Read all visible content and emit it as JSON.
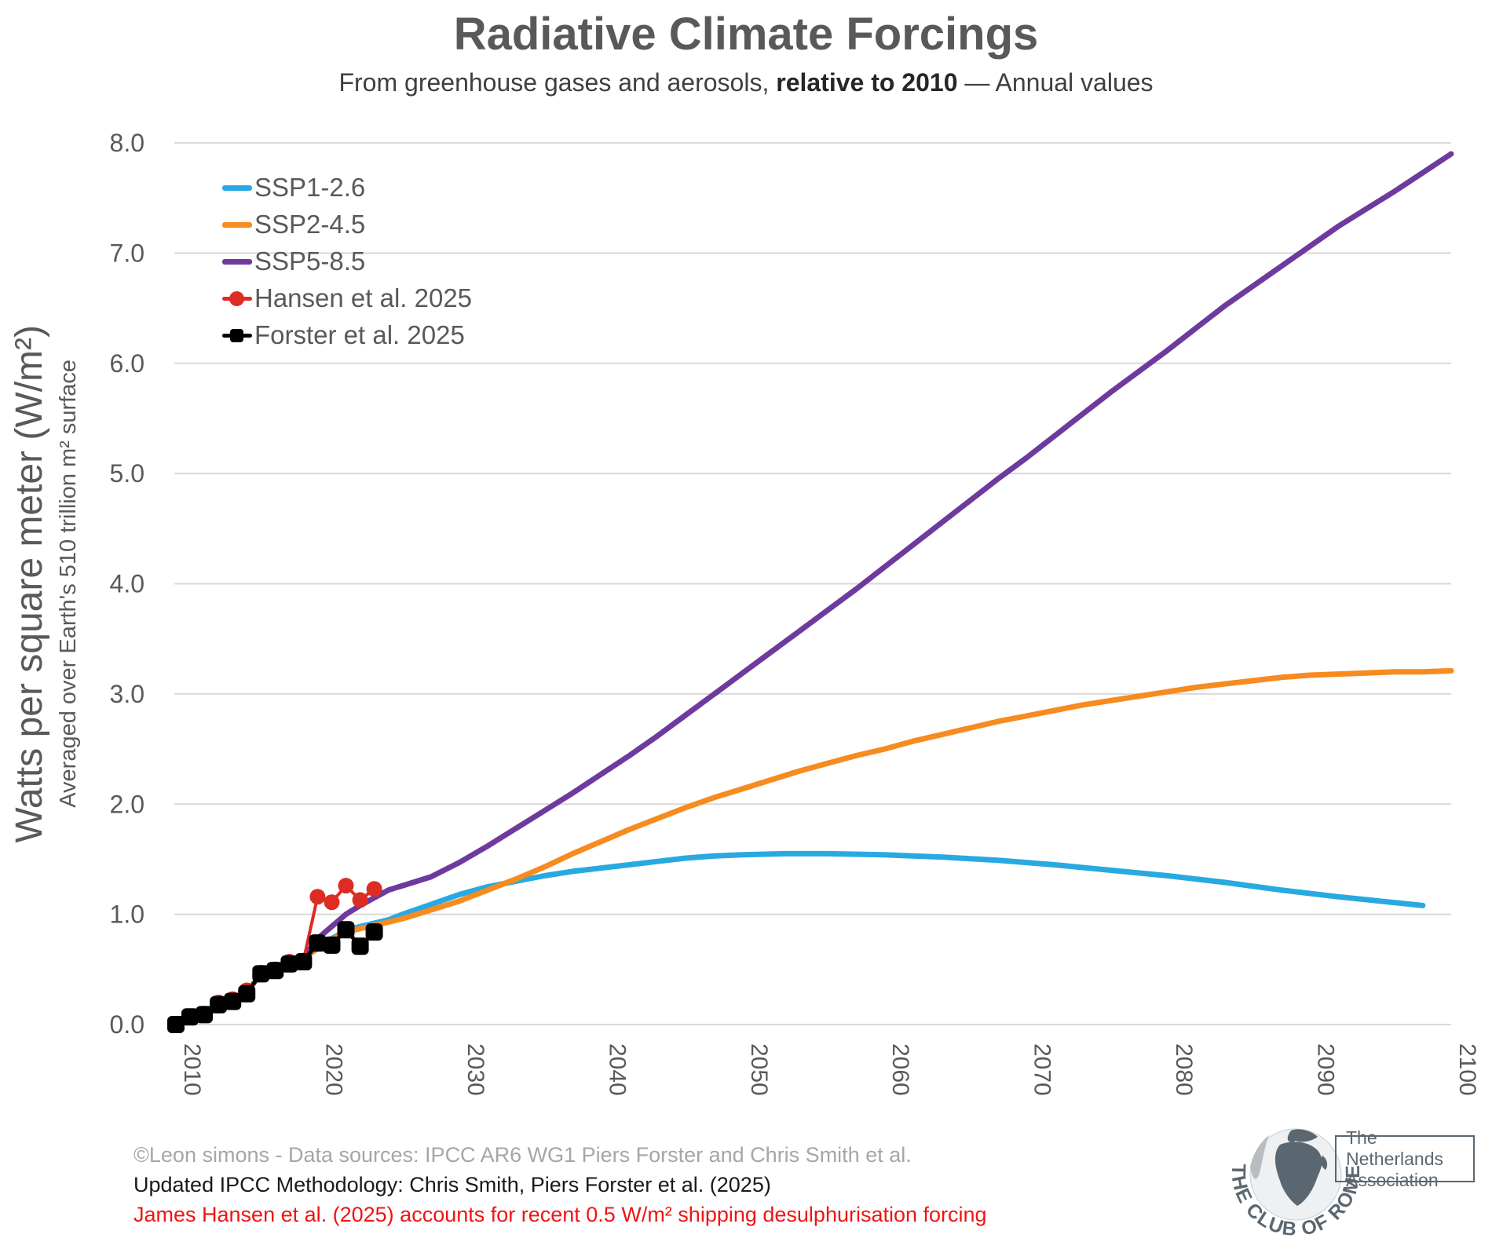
{
  "title": "Radiative Climate Forcings",
  "subtitle": {
    "prefix": "From greenhouse gases and aerosols, ",
    "bold": "relative to 2010",
    "suffix": " — Annual values"
  },
  "y_axis": {
    "title": "Watts per square meter (W/m²)",
    "subtitle": "Averaged over Earth's 510 trillion m² surface"
  },
  "footer": {
    "credit": "©Leon simons - Data sources: IPCC AR6 WG1 Piers Forster and Chris Smith et al.",
    "credit_color": "#a6a6a6",
    "methodology": "Updated IPCC Methodology: Chris Smith, Piers Forster et al. (2025)",
    "methodology_color": "#1a1a1a",
    "hansen_note": "James Hansen et al. (2025) accounts for recent 0.5 W/m² shipping desulphurisation forcing",
    "hansen_note_color": "#f01414"
  },
  "logo": {
    "arc_text": "THE CLUB OF ROME",
    "box_line1": "The Netherlands",
    "box_line2": "Association",
    "color": "#5b6770"
  },
  "chart_data": {
    "type": "line",
    "title": "Radiative Climate Forcings",
    "xlabel": "",
    "ylabel": "Watts per square meter (W/m²)",
    "xlim": [
      2010,
      2100
    ],
    "ylim": [
      0,
      8
    ],
    "grid": "horizontal",
    "grid_color": "#d9d9d9",
    "axis_color": "#595959",
    "legend_position": "inside top-left",
    "xticks": [
      {
        "v": 2010,
        "label": "2010"
      },
      {
        "v": 2020,
        "label": "2020"
      },
      {
        "v": 2030,
        "label": "2030"
      },
      {
        "v": 2040,
        "label": "2040"
      },
      {
        "v": 2050,
        "label": "2050"
      },
      {
        "v": 2060,
        "label": "2060"
      },
      {
        "v": 2070,
        "label": "2070"
      },
      {
        "v": 2080,
        "label": "2080"
      },
      {
        "v": 2090,
        "label": "2090"
      },
      {
        "v": 2100,
        "label": "2100"
      }
    ],
    "yticks": [
      {
        "v": 0,
        "label": "0.0"
      },
      {
        "v": 1,
        "label": "1.0"
      },
      {
        "v": 2,
        "label": "2.0"
      },
      {
        "v": 3,
        "label": "3.0"
      },
      {
        "v": 4,
        "label": "4.0"
      },
      {
        "v": 5,
        "label": "5.0"
      },
      {
        "v": 6,
        "label": "6.0"
      },
      {
        "v": 7,
        "label": "7.0"
      },
      {
        "v": 8,
        "label": "8.0"
      }
    ],
    "series": [
      {
        "id": "ssp1-26",
        "name": "SSP1-2.6",
        "color": "#29a9e1",
        "width": 7,
        "marker": "none",
        "points": [
          [
            2019,
            0.6
          ],
          [
            2020,
            0.7
          ],
          [
            2021,
            0.78
          ],
          [
            2022,
            0.85
          ],
          [
            2023,
            0.89
          ],
          [
            2024,
            0.92
          ],
          [
            2025,
            0.95
          ],
          [
            2026,
            1.0
          ],
          [
            2028,
            1.09
          ],
          [
            2030,
            1.18
          ],
          [
            2032,
            1.25
          ],
          [
            2034,
            1.3
          ],
          [
            2036,
            1.35
          ],
          [
            2038,
            1.39
          ],
          [
            2040,
            1.42
          ],
          [
            2042,
            1.45
          ],
          [
            2044,
            1.48
          ],
          [
            2046,
            1.51
          ],
          [
            2048,
            1.53
          ],
          [
            2050,
            1.54
          ],
          [
            2053,
            1.55
          ],
          [
            2056,
            1.55
          ],
          [
            2060,
            1.54
          ],
          [
            2064,
            1.52
          ],
          [
            2068,
            1.49
          ],
          [
            2072,
            1.45
          ],
          [
            2076,
            1.4
          ],
          [
            2080,
            1.35
          ],
          [
            2084,
            1.29
          ],
          [
            2088,
            1.22
          ],
          [
            2092,
            1.16
          ],
          [
            2095,
            1.12
          ],
          [
            2098,
            1.08
          ]
        ]
      },
      {
        "id": "ssp2-45",
        "name": "SSP2-4.5",
        "color": "#f68b1f",
        "width": 7,
        "marker": "none",
        "points": [
          [
            2019,
            0.6
          ],
          [
            2020,
            0.69
          ],
          [
            2021,
            0.77
          ],
          [
            2022,
            0.84
          ],
          [
            2023,
            0.87
          ],
          [
            2024,
            0.9
          ],
          [
            2025,
            0.93
          ],
          [
            2026,
            0.96
          ],
          [
            2028,
            1.04
          ],
          [
            2030,
            1.12
          ],
          [
            2032,
            1.22
          ],
          [
            2034,
            1.32
          ],
          [
            2036,
            1.43
          ],
          [
            2038,
            1.55
          ],
          [
            2040,
            1.66
          ],
          [
            2042,
            1.77
          ],
          [
            2044,
            1.87
          ],
          [
            2046,
            1.97
          ],
          [
            2048,
            2.06
          ],
          [
            2050,
            2.14
          ],
          [
            2052,
            2.22
          ],
          [
            2054,
            2.3
          ],
          [
            2056,
            2.37
          ],
          [
            2058,
            2.44
          ],
          [
            2060,
            2.5
          ],
          [
            2062,
            2.57
          ],
          [
            2064,
            2.63
          ],
          [
            2066,
            2.69
          ],
          [
            2068,
            2.75
          ],
          [
            2070,
            2.8
          ],
          [
            2072,
            2.85
          ],
          [
            2074,
            2.9
          ],
          [
            2076,
            2.94
          ],
          [
            2078,
            2.98
          ],
          [
            2080,
            3.02
          ],
          [
            2082,
            3.06
          ],
          [
            2084,
            3.09
          ],
          [
            2086,
            3.12
          ],
          [
            2088,
            3.15
          ],
          [
            2090,
            3.17
          ],
          [
            2092,
            3.18
          ],
          [
            2094,
            3.19
          ],
          [
            2096,
            3.2
          ],
          [
            2098,
            3.2
          ],
          [
            2100,
            3.21
          ]
        ]
      },
      {
        "id": "ssp5-85",
        "name": "SSP5-8.5",
        "color": "#6e3a9e",
        "width": 7,
        "marker": "none",
        "points": [
          [
            2019,
            0.6
          ],
          [
            2020,
            0.78
          ],
          [
            2021,
            0.89
          ],
          [
            2022,
            1.0
          ],
          [
            2023,
            1.08
          ],
          [
            2024,
            1.15
          ],
          [
            2025,
            1.22
          ],
          [
            2026,
            1.26
          ],
          [
            2028,
            1.34
          ],
          [
            2030,
            1.47
          ],
          [
            2032,
            1.62
          ],
          [
            2034,
            1.78
          ],
          [
            2036,
            1.94
          ],
          [
            2038,
            2.1
          ],
          [
            2040,
            2.27
          ],
          [
            2042,
            2.44
          ],
          [
            2044,
            2.62
          ],
          [
            2046,
            2.81
          ],
          [
            2048,
            3.0
          ],
          [
            2050,
            3.19
          ],
          [
            2052,
            3.38
          ],
          [
            2054,
            3.57
          ],
          [
            2056,
            3.76
          ],
          [
            2058,
            3.95
          ],
          [
            2060,
            4.15
          ],
          [
            2062,
            4.35
          ],
          [
            2064,
            4.55
          ],
          [
            2066,
            4.75
          ],
          [
            2068,
            4.95
          ],
          [
            2070,
            5.14
          ],
          [
            2072,
            5.34
          ],
          [
            2074,
            5.54
          ],
          [
            2076,
            5.74
          ],
          [
            2078,
            5.93
          ],
          [
            2080,
            6.12
          ],
          [
            2082,
            6.32
          ],
          [
            2084,
            6.52
          ],
          [
            2086,
            6.7
          ],
          [
            2088,
            6.88
          ],
          [
            2090,
            7.06
          ],
          [
            2092,
            7.24
          ],
          [
            2094,
            7.4
          ],
          [
            2096,
            7.56
          ],
          [
            2098,
            7.73
          ],
          [
            2100,
            7.9
          ]
        ]
      },
      {
        "id": "hansen-2025",
        "name": "Hansen et al. 2025",
        "color": "#dc2c23",
        "width": 4,
        "marker": "circle",
        "points": [
          [
            2010,
            0.0
          ],
          [
            2011,
            0.07
          ],
          [
            2012,
            0.1
          ],
          [
            2013,
            0.2
          ],
          [
            2014,
            0.23
          ],
          [
            2015,
            0.31
          ],
          [
            2016,
            0.47
          ],
          [
            2017,
            0.5
          ],
          [
            2018,
            0.57
          ],
          [
            2019,
            0.58
          ],
          [
            2020,
            1.16
          ],
          [
            2021,
            1.11
          ],
          [
            2022,
            1.26
          ],
          [
            2023,
            1.13
          ],
          [
            2024,
            1.23
          ]
        ]
      },
      {
        "id": "forster-2025",
        "name": "Forster et al. 2025",
        "color": "#000000",
        "width": 5,
        "marker": "square",
        "points": [
          [
            2010,
            0.0
          ],
          [
            2011,
            0.07
          ],
          [
            2012,
            0.09
          ],
          [
            2013,
            0.18
          ],
          [
            2014,
            0.21
          ],
          [
            2015,
            0.28
          ],
          [
            2016,
            0.46
          ],
          [
            2017,
            0.49
          ],
          [
            2018,
            0.55
          ],
          [
            2019,
            0.57
          ],
          [
            2020,
            0.74
          ],
          [
            2021,
            0.72
          ],
          [
            2022,
            0.86
          ],
          [
            2023,
            0.71
          ],
          [
            2024,
            0.84
          ]
        ]
      }
    ]
  }
}
